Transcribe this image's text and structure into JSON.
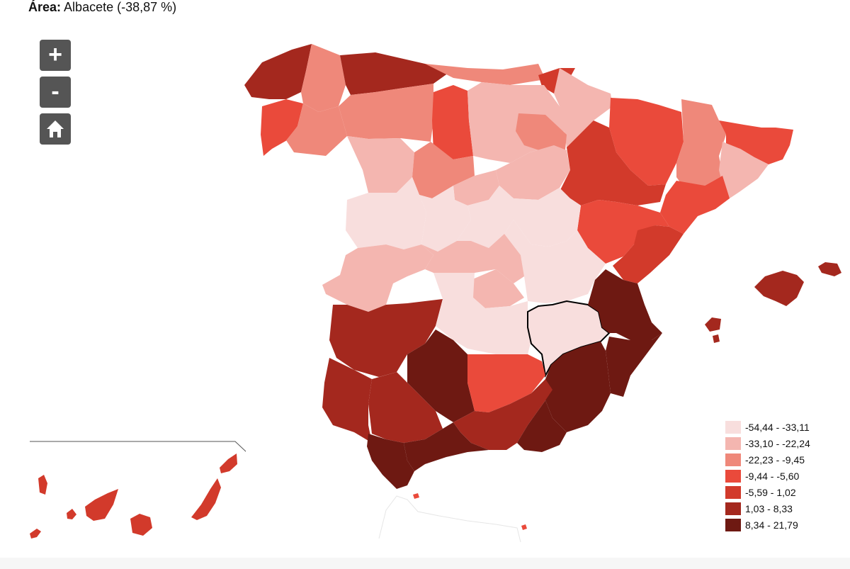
{
  "header": {
    "label": "Área:",
    "value": "Albacete (-38,87 %)"
  },
  "controls": {
    "zoom_in": "+",
    "zoom_out": "-",
    "home_icon": "home-icon"
  },
  "legend": [
    {
      "range": "-54,44 - -33,11",
      "color": "#f8dedd"
    },
    {
      "range": "-33,10 - -22,24",
      "color": "#f4b6b0"
    },
    {
      "range": "-22,23 - -9,45",
      "color": "#ef887a"
    },
    {
      "range": "-9,44 - -5,60",
      "color": "#ea4a3b"
    },
    {
      "range": "-5,59 - 1,02",
      "color": "#d23a2b"
    },
    {
      "range": "1,03 - 8,33",
      "color": "#a4281e"
    },
    {
      "range": "8,34 - 21,79",
      "color": "#6e1912"
    }
  ],
  "selected_region": "Albacete"
}
